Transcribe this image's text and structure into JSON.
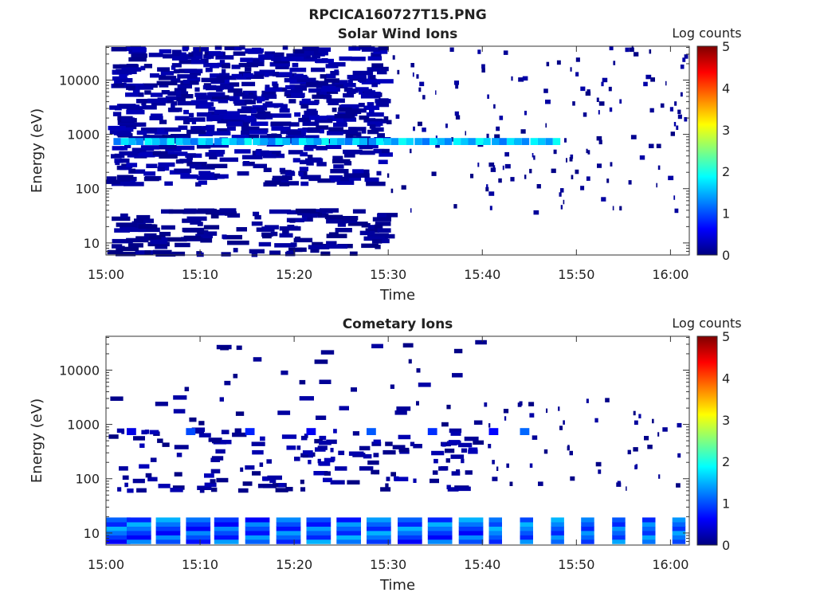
{
  "figure_title": "RPCICA160727T15.PNG",
  "chart_data": [
    {
      "type": "heatmap",
      "title": "Solar Wind Ions",
      "xlabel": "Time",
      "ylabel": "Energy (eV)",
      "x_range_min": [
        0,
        62
      ],
      "x_ticks": [
        "15:00",
        "15:10",
        "15:20",
        "15:30",
        "15:40",
        "15:50",
        "16:00"
      ],
      "y_scale": "log",
      "y_range": [
        6,
        42000
      ],
      "y_ticks": [
        10,
        100,
        1000,
        10000
      ],
      "y_tick_labels": [
        "10",
        "100",
        "1000",
        "10000"
      ],
      "colorbar": {
        "label": "Log counts",
        "range": [
          0,
          5
        ],
        "ticks": [
          "0",
          "1",
          "2",
          "3",
          "4",
          "5"
        ],
        "colormap": "jet"
      },
      "grid": false,
      "blobs": [
        {
          "x": [
            0,
            29
          ],
          "e": [
            1500,
            40000
          ],
          "n": 420,
          "v": [
            0.05,
            0.3
          ],
          "w": 1.1
        },
        {
          "x": [
            0,
            29
          ],
          "e": [
            120,
            1400
          ],
          "n": 260,
          "v": [
            0.05,
            0.3
          ],
          "w": 1.1
        },
        {
          "x": [
            0,
            29
          ],
          "e": [
            6,
            40
          ],
          "n": 160,
          "v": [
            0.0,
            0.2
          ],
          "w": 1.2
        },
        {
          "x": [
            29,
            62
          ],
          "e": [
            30,
            40000
          ],
          "n": 150,
          "v": [
            0.0,
            0.2
          ],
          "w": 0.3
        }
      ],
      "bands": [
        {
          "x": [
            0.8,
            1.6,
            2.4,
            3.2,
            4.1,
            4.9,
            5.7,
            6.5,
            7.4,
            8.2,
            9.0,
            9.8,
            10.6,
            11.5,
            12.3,
            13.1,
            13.9,
            14.7,
            15.6,
            16.4,
            17.2,
            18.0,
            18.8,
            19.7,
            20.5,
            21.3,
            22.1,
            22.9,
            23.8,
            24.6,
            25.4,
            26.2,
            27.0,
            27.9,
            28.7,
            29.5,
            30.3,
            31.1,
            31.9,
            32.8,
            33.6,
            34.4,
            35.2,
            36.0,
            36.9,
            37.7,
            38.5,
            39.3,
            40.1,
            41.0,
            41.8,
            42.6,
            43.4,
            44.2,
            45.1,
            45.9,
            46.7,
            47.5
          ],
          "e": 780,
          "v": [
            1.2,
            2.0
          ]
        }
      ]
    },
    {
      "type": "heatmap",
      "title": "Cometary Ions",
      "xlabel": "Time",
      "ylabel": "Energy (eV)",
      "x_range_min": [
        0,
        62
      ],
      "x_ticks": [
        "15:00",
        "15:10",
        "15:20",
        "15:30",
        "15:40",
        "15:50",
        "16:00"
      ],
      "y_scale": "log",
      "y_range": [
        6,
        42000
      ],
      "y_ticks": [
        10,
        100,
        1000,
        10000
      ],
      "y_tick_labels": [
        "10",
        "100",
        "1000",
        "10000"
      ],
      "colorbar": {
        "label": "Log counts",
        "range": [
          0,
          5
        ],
        "ticks": [
          "0",
          "1",
          "2",
          "3",
          "4",
          "5"
        ],
        "colormap": "jet"
      },
      "grid": false,
      "blobs": [
        {
          "x": [
            0,
            40
          ],
          "e": [
            60,
            800
          ],
          "n": 160,
          "v": [
            0.0,
            0.3
          ],
          "w": 0.8
        },
        {
          "x": [
            0,
            40
          ],
          "e": [
            1000,
            40000
          ],
          "n": 40,
          "v": [
            0.0,
            0.2
          ],
          "w": 0.8
        },
        {
          "x": [
            40,
            62
          ],
          "e": [
            60,
            3000
          ],
          "n": 50,
          "v": [
            0.0,
            0.2
          ],
          "w": 0.3
        }
      ],
      "bands": [
        {
          "x": [
            0.0,
            2.2,
            5.3,
            8.5,
            11.5,
            14.8,
            18.1,
            21.3,
            24.5,
            27.7,
            31.0,
            34.2,
            37.5
          ],
          "e": 15,
          "v": [
            0.6,
            1.6
          ],
          "w": 2.6
        },
        {
          "x": [
            40.7,
            44.0,
            47.3,
            50.5,
            53.8,
            57.0,
            60.2
          ],
          "e": 15,
          "v": [
            0.8,
            1.6
          ],
          "w": 1.4
        },
        {
          "x": [
            2.2,
            8.5,
            14.8,
            21.3,
            27.7,
            34.2,
            40.7,
            44.0
          ],
          "e": 780,
          "v": [
            0.5,
            1.2
          ],
          "w": 1.0
        }
      ]
    }
  ]
}
